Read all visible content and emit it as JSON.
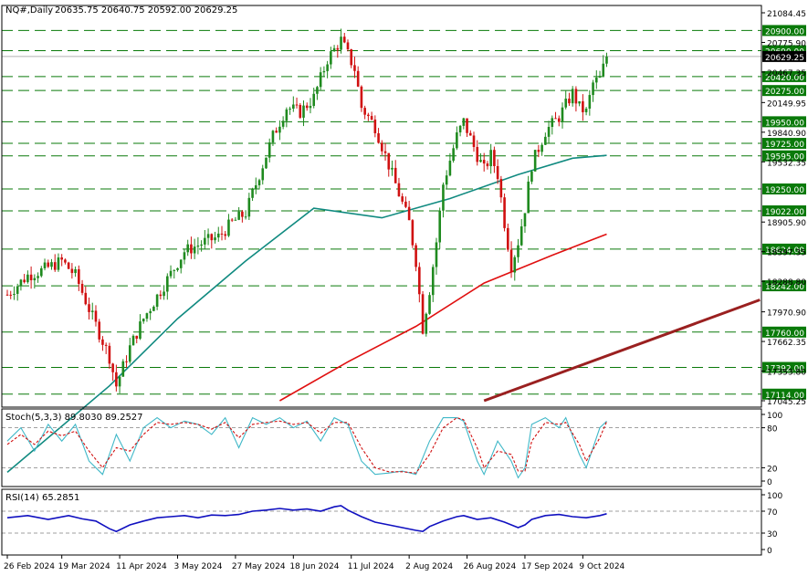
{
  "header": {
    "symbol": "NQ#,Daily",
    "ohlc": "20635.75 20640.75 20592.00 20629.25"
  },
  "stoch": {
    "label": "Stoch(5,3,3) 89.8030 89.2527"
  },
  "rsi": {
    "label": "RSI(14) 65.2851"
  },
  "colors": {
    "bull": "#1f8a1f",
    "bear": "#d01010",
    "ma_teal": "#108a80",
    "ma_red": "#e01010",
    "trend": "#9a2020",
    "level_bg": "#0a7a0a",
    "price_bg": "#000000",
    "stoch_main": "#40b8c8",
    "stoch_signal": "#d01010",
    "rsi_line": "#1010c0",
    "grid": "#d0d0d0"
  },
  "chart_data": [
    {
      "type": "candlestick",
      "title": "NQ#,Daily",
      "ylim": [
        17045.25,
        21084.45
      ],
      "y_tick_labels": [
        "21084.45",
        "20775.90",
        "20467.35",
        "20149.95",
        "19840.90",
        "19532.35",
        "18905.90",
        "18597.35",
        "18288.80",
        "17970.90",
        "17662.35",
        "17353.80",
        "17045.25"
      ],
      "x_tick_labels": [
        "26 Feb 2024",
        "19 Mar 2024",
        "11 Apr 2024",
        "3 May 2024",
        "27 May 2024",
        "18 Jun 2024",
        "11 Jul 2024",
        "2 Aug 2024",
        "26 Aug 2024",
        "17 Sep 2024",
        "9 Oct 2024"
      ],
      "levels": [
        "20900.00",
        "20690.00",
        "20420.00",
        "20275.00",
        "19950.00",
        "19725.00",
        "19595.00",
        "19250.00",
        "19022.00",
        "18624.00",
        "18242.00",
        "17760.00",
        "17392.00",
        "17114.00"
      ],
      "current_price": "20629.25",
      "close_path": [
        [
          0,
          18150
        ],
        [
          6,
          18350
        ],
        [
          10,
          18400
        ],
        [
          16,
          18500
        ],
        [
          20,
          18350
        ],
        [
          24,
          18000
        ],
        [
          30,
          17500
        ],
        [
          32,
          17200
        ],
        [
          36,
          17600
        ],
        [
          40,
          17900
        ],
        [
          46,
          18250
        ],
        [
          52,
          18600
        ],
        [
          58,
          18700
        ],
        [
          62,
          18750
        ],
        [
          66,
          18900
        ],
        [
          70,
          19000
        ],
        [
          74,
          19400
        ],
        [
          78,
          19800
        ],
        [
          82,
          20100
        ],
        [
          86,
          20050
        ],
        [
          90,
          20200
        ],
        [
          94,
          20600
        ],
        [
          98,
          20800
        ],
        [
          102,
          20500
        ],
        [
          104,
          20100
        ],
        [
          108,
          19900
        ],
        [
          110,
          19700
        ],
        [
          114,
          19300
        ],
        [
          118,
          18900
        ],
        [
          120,
          18500
        ],
        [
          122,
          17800
        ],
        [
          124,
          18200
        ],
        [
          126,
          18700
        ],
        [
          128,
          19300
        ],
        [
          132,
          19800
        ],
        [
          134,
          19950
        ],
        [
          138,
          19600
        ],
        [
          140,
          19450
        ],
        [
          142,
          19600
        ],
        [
          144,
          19400
        ],
        [
          146,
          18900
        ],
        [
          148,
          18450
        ],
        [
          150,
          18700
        ],
        [
          152,
          19050
        ],
        [
          154,
          19500
        ],
        [
          158,
          19850
        ],
        [
          162,
          20000
        ],
        [
          166,
          20250
        ],
        [
          168,
          20100
        ],
        [
          170,
          20050
        ],
        [
          172,
          20350
        ],
        [
          174,
          20400
        ],
        [
          176,
          20629
        ]
      ],
      "series": [
        {
          "name": "",
          "type": "line",
          "values": [
            [
              0,
              16300
            ],
            [
              30,
              17200
            ],
            [
              50,
              17900
            ],
            [
              70,
              18500
            ],
            [
              90,
              19050
            ],
            [
              110,
              18950
            ],
            [
              130,
              19150
            ],
            [
              150,
              19400
            ],
            [
              166,
              19570
            ],
            [
              176,
              19600
            ]
          ]
        },
        {
          "name": "",
          "type": "line",
          "values": [
            [
              80,
              17045
            ],
            [
              100,
              17450
            ],
            [
              120,
              17820
            ],
            [
              140,
              18270
            ],
            [
              160,
              18560
            ],
            [
              176,
              18780
            ]
          ]
        },
        {
          "name": "",
          "type": "line",
          "values": [
            [
              140,
              17045
            ],
            [
              221,
              18095
            ]
          ]
        }
      ]
    },
    {
      "type": "line",
      "title": "Stoch(5,3,3) 89.8030 89.2527",
      "ylim": [
        0,
        100
      ],
      "y_tick_labels": [
        "100",
        "80",
        "20",
        "0"
      ],
      "levels": [
        80,
        20
      ],
      "series": [
        {
          "name": "",
          "values": [
            [
              0,
              60
            ],
            [
              4,
              80
            ],
            [
              8,
              45
            ],
            [
              12,
              85
            ],
            [
              16,
              60
            ],
            [
              20,
              85
            ],
            [
              24,
              30
            ],
            [
              28,
              10
            ],
            [
              32,
              70
            ],
            [
              36,
              30
            ],
            [
              40,
              80
            ],
            [
              44,
              95
            ],
            [
              48,
              80
            ],
            [
              52,
              90
            ],
            [
              56,
              85
            ],
            [
              60,
              70
            ],
            [
              64,
              95
            ],
            [
              68,
              50
            ],
            [
              72,
              95
            ],
            [
              76,
              85
            ],
            [
              80,
              95
            ],
            [
              84,
              80
            ],
            [
              88,
              90
            ],
            [
              92,
              60
            ],
            [
              96,
              95
            ],
            [
              100,
              85
            ],
            [
              104,
              30
            ],
            [
              108,
              10
            ],
            [
              112,
              12
            ],
            [
              116,
              15
            ],
            [
              120,
              10
            ],
            [
              124,
              60
            ],
            [
              128,
              95
            ],
            [
              132,
              95
            ],
            [
              134,
              90
            ],
            [
              138,
              30
            ],
            [
              140,
              10
            ],
            [
              144,
              60
            ],
            [
              148,
              30
            ],
            [
              150,
              5
            ],
            [
              152,
              20
            ],
            [
              154,
              85
            ],
            [
              158,
              95
            ],
            [
              162,
              80
            ],
            [
              164,
              95
            ],
            [
              168,
              40
            ],
            [
              170,
              20
            ],
            [
              174,
              80
            ],
            [
              176,
              89.8
            ]
          ]
        },
        {
          "name": "",
          "values": [
            [
              0,
              55
            ],
            [
              4,
              70
            ],
            [
              8,
              55
            ],
            [
              12,
              75
            ],
            [
              16,
              68
            ],
            [
              20,
              75
            ],
            [
              24,
              45
            ],
            [
              28,
              20
            ],
            [
              32,
              50
            ],
            [
              36,
              45
            ],
            [
              40,
              70
            ],
            [
              44,
              88
            ],
            [
              48,
              85
            ],
            [
              52,
              88
            ],
            [
              56,
              85
            ],
            [
              60,
              78
            ],
            [
              64,
              88
            ],
            [
              68,
              65
            ],
            [
              72,
              85
            ],
            [
              76,
              88
            ],
            [
              80,
              90
            ],
            [
              84,
              85
            ],
            [
              88,
              88
            ],
            [
              92,
              72
            ],
            [
              96,
              88
            ],
            [
              100,
              88
            ],
            [
              104,
              50
            ],
            [
              108,
              20
            ],
            [
              112,
              14
            ],
            [
              116,
              14
            ],
            [
              120,
              12
            ],
            [
              124,
              40
            ],
            [
              128,
              80
            ],
            [
              132,
              95
            ],
            [
              134,
              92
            ],
            [
              138,
              50
            ],
            [
              140,
              20
            ],
            [
              144,
              45
            ],
            [
              148,
              40
            ],
            [
              150,
              15
            ],
            [
              152,
              15
            ],
            [
              154,
              60
            ],
            [
              158,
              88
            ],
            [
              162,
              85
            ],
            [
              164,
              88
            ],
            [
              168,
              55
            ],
            [
              170,
              30
            ],
            [
              174,
              65
            ],
            [
              176,
              89.25
            ]
          ]
        }
      ]
    },
    {
      "type": "line",
      "title": "RSI(14) 65.2851",
      "ylim": [
        0,
        100
      ],
      "y_tick_labels": [
        "100",
        "70",
        "30",
        "0"
      ],
      "levels": [
        70,
        30
      ],
      "series": [
        {
          "name": "",
          "values": [
            [
              0,
              58
            ],
            [
              6,
              62
            ],
            [
              12,
              55
            ],
            [
              18,
              62
            ],
            [
              22,
              56
            ],
            [
              26,
              52
            ],
            [
              30,
              38
            ],
            [
              32,
              33
            ],
            [
              36,
              45
            ],
            [
              40,
              52
            ],
            [
              44,
              58
            ],
            [
              48,
              60
            ],
            [
              52,
              62
            ],
            [
              56,
              58
            ],
            [
              60,
              63
            ],
            [
              64,
              62
            ],
            [
              68,
              64
            ],
            [
              72,
              70
            ],
            [
              76,
              72
            ],
            [
              80,
              75
            ],
            [
              84,
              72
            ],
            [
              88,
              74
            ],
            [
              92,
              70
            ],
            [
              96,
              78
            ],
            [
              98,
              80
            ],
            [
              100,
              72
            ],
            [
              104,
              60
            ],
            [
              108,
              50
            ],
            [
              112,
              45
            ],
            [
              116,
              40
            ],
            [
              120,
              35
            ],
            [
              122,
              33
            ],
            [
              124,
              42
            ],
            [
              128,
              52
            ],
            [
              132,
              60
            ],
            [
              134,
              62
            ],
            [
              138,
              55
            ],
            [
              142,
              58
            ],
            [
              146,
              50
            ],
            [
              150,
              40
            ],
            [
              152,
              45
            ],
            [
              154,
              55
            ],
            [
              158,
              62
            ],
            [
              162,
              64
            ],
            [
              166,
              60
            ],
            [
              170,
              58
            ],
            [
              174,
              62
            ],
            [
              176,
              65.29
            ]
          ]
        }
      ]
    }
  ]
}
